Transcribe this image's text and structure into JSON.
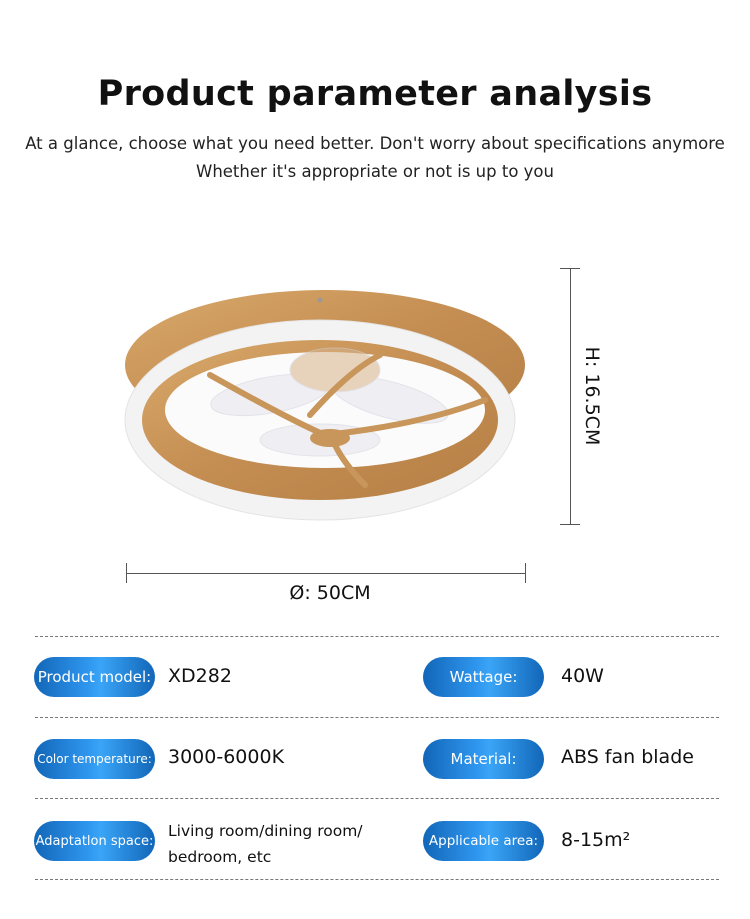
{
  "header": {
    "title": "Product parameter analysis",
    "subtitle_1": "At a glance, choose what you need better. Don't worry about specifications anymore",
    "subtitle_2": "Whether it's appropriate or not is up to you"
  },
  "product_image": {
    "height_label": "H: 16.5CM",
    "diameter_label": "Ø: 50CM",
    "colors": {
      "wood": "#c8955a",
      "ring": "#f4f4f4"
    }
  },
  "specs": {
    "accent_color": "#2f97ef",
    "left": [
      {
        "label": "Product model:",
        "value": "XD282"
      },
      {
        "label": "Color temperature:",
        "value": "3000-6000K"
      },
      {
        "label": "Adaptatlon space:",
        "value_line1": "Living room/dining room/",
        "value_line2": "bedroom, etc"
      }
    ],
    "right": [
      {
        "label": "Wattage:",
        "value": "40W"
      },
      {
        "label": "Material:",
        "value": "ABS fan blade"
      },
      {
        "label": "Applicable area:",
        "value": "8-15m²"
      }
    ]
  }
}
